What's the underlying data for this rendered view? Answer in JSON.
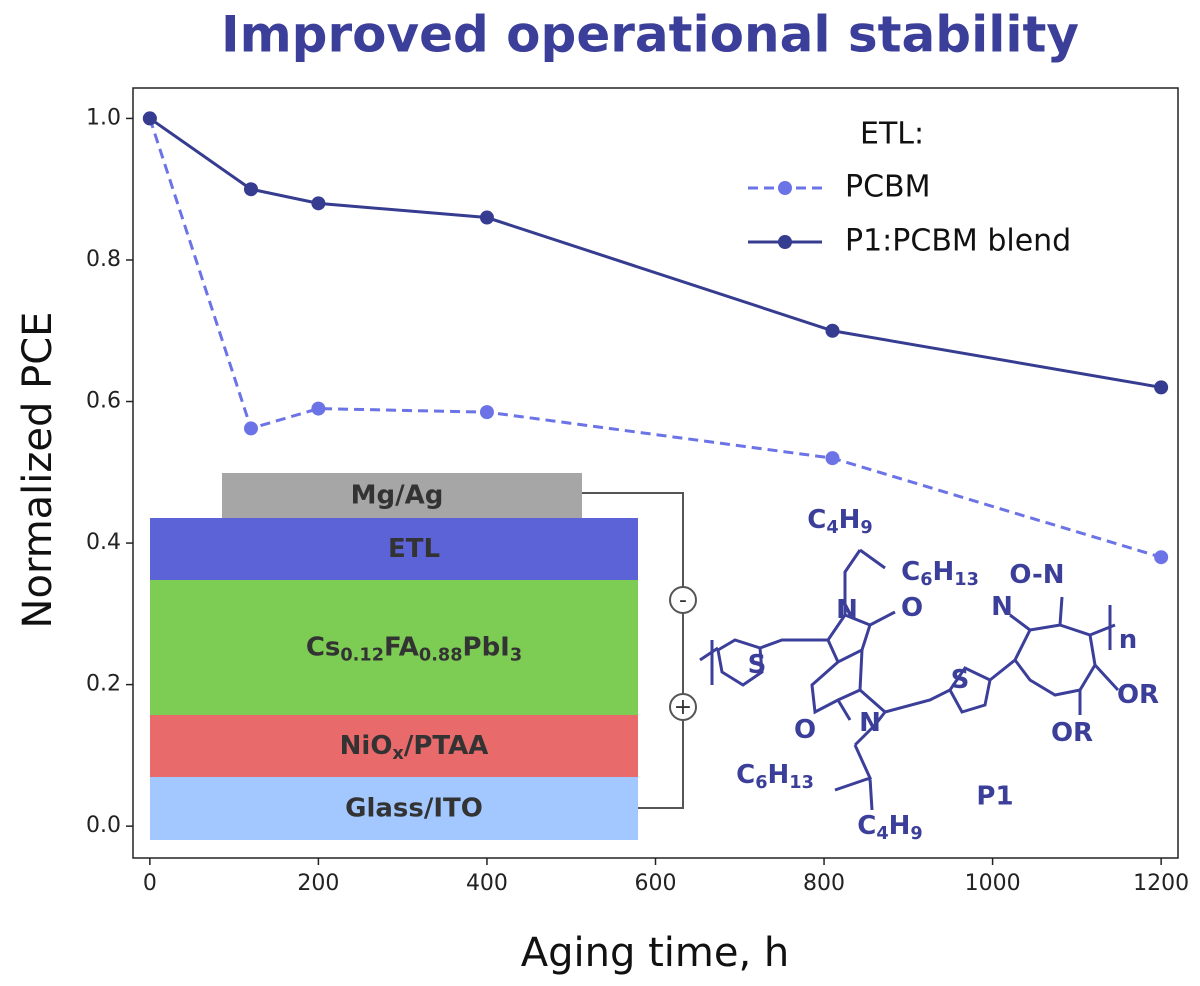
{
  "chart_data": {
    "type": "line",
    "title": "Improved operational stability",
    "xlabel": "Aging time, h",
    "ylabel": "Normalized PCE",
    "x": [
      0,
      120,
      200,
      400,
      810,
      1200
    ],
    "series": [
      {
        "name": "PCBM",
        "color": "#6b73e6",
        "dash": true,
        "values": [
          1.0,
          0.562,
          0.59,
          0.585,
          0.52,
          0.38
        ]
      },
      {
        "name": "P1:PCBM blend",
        "color": "#363c8f",
        "dash": false,
        "values": [
          1.0,
          0.9,
          0.88,
          0.86,
          0.7,
          0.62
        ]
      }
    ],
    "xlim": [
      -20,
      1220
    ],
    "ylim": [
      -0.045,
      1.043
    ],
    "xticks": [
      0,
      200,
      400,
      600,
      800,
      1000,
      1200
    ],
    "yticks": [
      {
        "value": 0,
        "label": "0.0"
      },
      0.2,
      0.4,
      0.6,
      0.8,
      {
        "value": 1,
        "label": "1.0"
      }
    ],
    "legend_title": "ETL:",
    "legend": "upper right"
  },
  "device": {
    "layers": [
      {
        "parts": [
          "Mg/Ag"
        ],
        "color": "#a6a6a6"
      },
      {
        "parts": [
          "ETL"
        ],
        "color": "#5c63d6"
      },
      {
        "parts": [
          "Cs",
          "0.12",
          "FA",
          "0.88",
          "PbI",
          "3"
        ],
        "color": "#7dcd55"
      },
      {
        "parts": [
          "NiO",
          "x",
          "/PTAA"
        ],
        "color": "#e86a6a"
      },
      {
        "parts": [
          "Glass/ITO"
        ],
        "color": "#a3c8ff"
      }
    ],
    "terminals": [
      "-",
      "+"
    ]
  },
  "molecule": {
    "labels": [
      {
        "parts": [
          "C",
          "4",
          "H",
          "9"
        ]
      },
      {
        "parts": [
          "C",
          "6",
          "H",
          "13"
        ]
      },
      {
        "parts": [
          "N"
        ]
      },
      {
        "parts": [
          "O"
        ]
      },
      {
        "parts": [
          "S"
        ]
      },
      {
        "parts": [
          "O"
        ]
      },
      {
        "parts": [
          "N"
        ]
      },
      {
        "parts": [
          "S"
        ]
      },
      {
        "parts": [
          "N"
        ]
      },
      {
        "parts": [
          "O-N"
        ]
      },
      {
        "parts": [
          "n"
        ]
      },
      {
        "parts": [
          "OR"
        ]
      },
      {
        "parts": [
          "OR"
        ]
      },
      {
        "parts": [
          "C",
          "6",
          "H",
          "13"
        ]
      },
      {
        "parts": [
          "C",
          "4",
          "H",
          "9"
        ]
      }
    ],
    "name": "P1"
  }
}
